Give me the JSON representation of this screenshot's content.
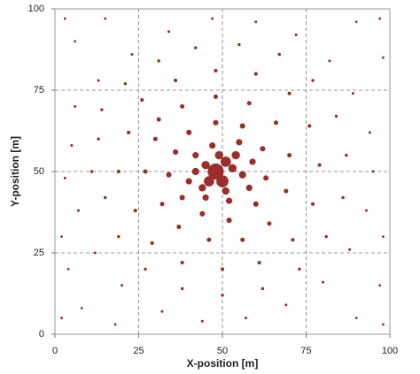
{
  "chart_data": {
    "type": "scatter",
    "xlabel": "X-position [m]",
    "ylabel": "Y-position [m]",
    "xlim": [
      0,
      100
    ],
    "ylim": [
      0,
      100
    ],
    "xticks": [
      0,
      25,
      50,
      75,
      100
    ],
    "yticks": [
      0,
      25,
      50,
      75,
      100
    ],
    "grid": true,
    "series": [
      {
        "color": "#9b2d2a",
        "x": [
          48,
          50,
          46,
          51,
          53,
          45,
          49,
          54,
          51,
          44,
          42,
          56,
          55,
          47,
          42,
          40,
          45,
          52,
          58,
          59,
          36,
          38,
          44,
          52,
          60,
          63,
          62,
          56,
          48,
          40,
          34,
          30,
          32,
          37,
          46,
          56,
          64,
          69,
          70,
          66,
          58,
          48,
          38,
          31,
          27,
          22,
          24,
          29,
          38,
          50,
          61,
          71,
          77,
          79,
          76,
          70,
          60,
          48,
          36,
          26,
          19,
          13,
          15,
          19,
          27,
          38,
          50,
          62,
          73,
          81,
          86,
          87,
          84,
          77,
          67,
          55,
          42,
          31,
          21,
          14,
          11,
          5,
          7,
          12,
          20,
          32,
          44,
          57,
          69,
          80,
          88,
          93,
          95,
          94,
          89,
          82,
          72,
          60,
          47,
          34,
          23,
          13,
          6,
          3,
          4,
          8,
          18,
          90,
          97,
          98,
          90,
          6,
          15,
          3,
          97,
          2,
          98,
          98,
          2
        ],
        "values": [
          50,
          47,
          47,
          53,
          51,
          52,
          55,
          55,
          44,
          45,
          50,
          49,
          59,
          58,
          55,
          47,
          42,
          41,
          45,
          53,
          56,
          42,
          37,
          35,
          40,
          48,
          57,
          64,
          65,
          62,
          49,
          60,
          40,
          33,
          29,
          29,
          34,
          44,
          55,
          65,
          71,
          73,
          70,
          66,
          50,
          62,
          38,
          28,
          22,
          20,
          22,
          29,
          40,
          52,
          64,
          74,
          80,
          81,
          78,
          72,
          50,
          60,
          42,
          30,
          20,
          14,
          12,
          14,
          20,
          30,
          42,
          55,
          67,
          78,
          86,
          89,
          88,
          84,
          77,
          69,
          50,
          58,
          38,
          25,
          15,
          7,
          4,
          5,
          9,
          16,
          26,
          38,
          50,
          62,
          74,
          84,
          92,
          96,
          97,
          93,
          86,
          78,
          70,
          48,
          20,
          8,
          3,
          5,
          15,
          85,
          96,
          90,
          97,
          97,
          97,
          5,
          3,
          30,
          30
        ],
        "sizes": [
          8,
          6,
          5,
          5,
          4,
          4,
          4,
          4,
          3.5,
          3.5,
          3.5,
          3.5,
          3,
          3,
          3,
          3,
          3,
          3,
          3,
          3,
          2.5,
          2.5,
          2.5,
          2.5,
          2.5,
          2.5,
          2.5,
          2.5,
          2.5,
          2.5,
          2.5,
          2,
          2,
          2,
          2,
          2,
          2,
          2,
          2,
          2,
          2,
          2,
          2,
          2,
          2,
          1.6,
          1.6,
          1.6,
          1.6,
          1.6,
          1.6,
          1.6,
          1.6,
          1.6,
          1.6,
          1.6,
          1.6,
          1.6,
          1.6,
          1.6,
          1.6,
          1.3,
          1.3,
          1.3,
          1.3,
          1.3,
          1.3,
          1.3,
          1.3,
          1.3,
          1.3,
          1.3,
          1.3,
          1.3,
          1.3,
          1.3,
          1.3,
          1.3,
          1.3,
          1.3,
          1.3,
          1.1,
          1.1,
          1.1,
          1.1,
          1.1,
          1.1,
          1.1,
          1.1,
          1.1,
          1.1,
          1.1,
          1.1,
          1.1,
          1.1,
          1.1,
          1.1,
          1.1,
          1.1,
          1.1,
          1.1,
          1.1,
          1.1,
          1.1,
          1,
          1,
          1,
          1,
          1,
          1,
          1,
          1,
          1,
          1,
          1,
          1,
          1,
          1,
          1
        ]
      }
    ]
  }
}
